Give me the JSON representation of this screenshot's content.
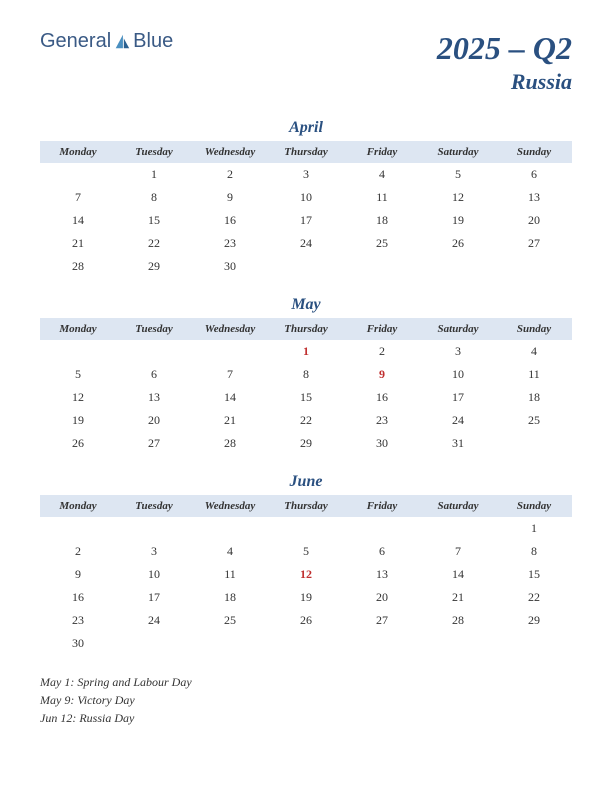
{
  "logo": {
    "text1": "General",
    "text2": "Blue"
  },
  "title": {
    "year_quarter": "2025 – Q2",
    "country": "Russia"
  },
  "day_headers": [
    "Monday",
    "Tuesday",
    "Wednesday",
    "Thursday",
    "Friday",
    "Saturday",
    "Sunday"
  ],
  "colors": {
    "brand": "#2a5080",
    "header_bg": "#dde6f2",
    "text": "#333333",
    "holiday": "#c03030",
    "background": "#ffffff"
  },
  "months": [
    {
      "name": "April",
      "weeks": [
        [
          "",
          "1",
          "2",
          "3",
          "4",
          "5",
          "6"
        ],
        [
          "7",
          "8",
          "9",
          "10",
          "11",
          "12",
          "13"
        ],
        [
          "14",
          "15",
          "16",
          "17",
          "18",
          "19",
          "20"
        ],
        [
          "21",
          "22",
          "23",
          "24",
          "25",
          "26",
          "27"
        ],
        [
          "28",
          "29",
          "30",
          "",
          "",
          "",
          ""
        ]
      ],
      "holidays": []
    },
    {
      "name": "May",
      "weeks": [
        [
          "",
          "",
          "",
          "1",
          "2",
          "3",
          "4"
        ],
        [
          "5",
          "6",
          "7",
          "8",
          "9",
          "10",
          "11"
        ],
        [
          "12",
          "13",
          "14",
          "15",
          "16",
          "17",
          "18"
        ],
        [
          "19",
          "20",
          "21",
          "22",
          "23",
          "24",
          "25"
        ],
        [
          "26",
          "27",
          "28",
          "29",
          "30",
          "31",
          ""
        ]
      ],
      "holidays": [
        "1",
        "9"
      ]
    },
    {
      "name": "June",
      "weeks": [
        [
          "",
          "",
          "",
          "",
          "",
          "",
          "1"
        ],
        [
          "2",
          "3",
          "4",
          "5",
          "6",
          "7",
          "8"
        ],
        [
          "9",
          "10",
          "11",
          "12",
          "13",
          "14",
          "15"
        ],
        [
          "16",
          "17",
          "18",
          "19",
          "20",
          "21",
          "22"
        ],
        [
          "23",
          "24",
          "25",
          "26",
          "27",
          "28",
          "29"
        ],
        [
          "30",
          "",
          "",
          "",
          "",
          "",
          ""
        ]
      ],
      "holidays": [
        "12"
      ]
    }
  ],
  "holiday_list": [
    "May 1: Spring and Labour Day",
    "May 9: Victory Day",
    "Jun 12: Russia Day"
  ]
}
